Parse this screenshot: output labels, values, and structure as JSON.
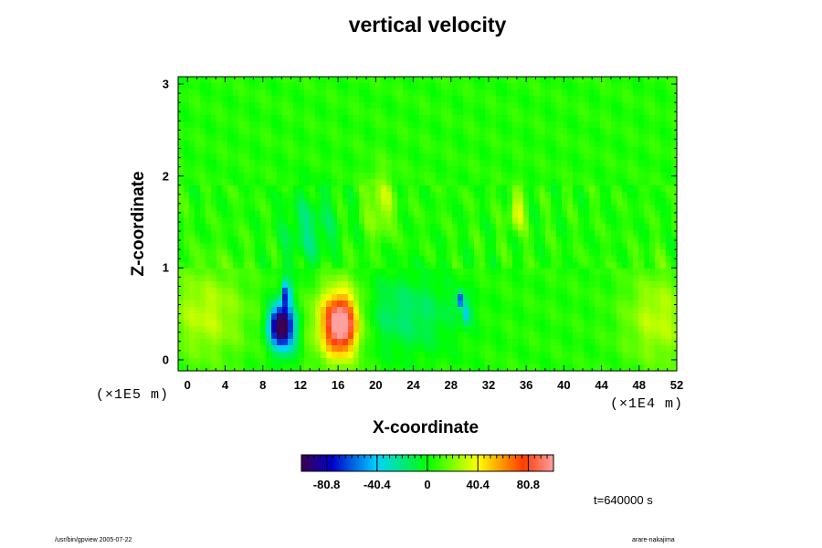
{
  "chart_data": {
    "type": "heatmap",
    "title": "vertical velocity",
    "xlabel": "X-coordinate",
    "ylabel": "Z-coordinate",
    "x_multiplier": "(×1E4 m)",
    "z_multiplier": "(×1E5 m)",
    "xlim": [
      -1,
      52
    ],
    "ylim": [
      -0.12,
      3.08
    ],
    "xticks": [
      "0",
      "4",
      "8",
      "12",
      "16",
      "20",
      "24",
      "28",
      "32",
      "36",
      "40",
      "44",
      "48",
      "52"
    ],
    "yticks": [
      "0",
      "1",
      "2",
      "3"
    ],
    "colorbar": {
      "range": [
        -101,
        101
      ],
      "tick_labels": [
        "-80.8",
        "-40.4",
        "0",
        "40.4",
        "80.8"
      ],
      "tick_values": [
        -80.8,
        -40.4,
        0,
        40.4,
        80.8
      ]
    },
    "background_value": 5,
    "features": [
      {
        "x": 9.8,
        "z": 0.38,
        "value": -78,
        "sx": 0.8,
        "sz": 0.14
      },
      {
        "x": 10.3,
        "z": 0.33,
        "value": -60,
        "sx": 1.0,
        "sz": 0.2
      },
      {
        "x": 10.5,
        "z": 0.72,
        "value": -70,
        "sx": 0.35,
        "sz": 0.1
      },
      {
        "x": 16.3,
        "z": 0.38,
        "value": 78,
        "sx": 1.1,
        "sz": 0.2
      },
      {
        "x": 16.0,
        "z": 0.42,
        "value": 45,
        "sx": 2.0,
        "sz": 0.32
      },
      {
        "x": 29.0,
        "z": 0.65,
        "value": -70,
        "sx": 0.3,
        "sz": 0.06
      },
      {
        "x": 29.7,
        "z": 0.5,
        "value": -45,
        "sx": 0.3,
        "sz": 0.08
      },
      {
        "x": 2.0,
        "z": 0.5,
        "value": 25,
        "sx": 3.0,
        "sz": 0.35
      },
      {
        "x": 50.0,
        "z": 0.45,
        "value": 25,
        "sx": 2.5,
        "sz": 0.35
      },
      {
        "x": 23.0,
        "z": 0.5,
        "value": -22,
        "sx": 4.0,
        "sz": 0.3
      },
      {
        "x": 35.0,
        "z": 1.6,
        "value": 30,
        "sx": 0.6,
        "sz": 0.15
      },
      {
        "x": 20.5,
        "z": 1.7,
        "value": 25,
        "sx": 1.0,
        "sz": 0.25
      },
      {
        "x": 13.0,
        "z": 1.4,
        "value": -20,
        "sx": 2.0,
        "sz": 0.3
      }
    ]
  },
  "time_label": "t=640000 s",
  "footer": {
    "left": "/usr/bin/gpview 2005-07-22",
    "right": "arare-nakajima"
  }
}
